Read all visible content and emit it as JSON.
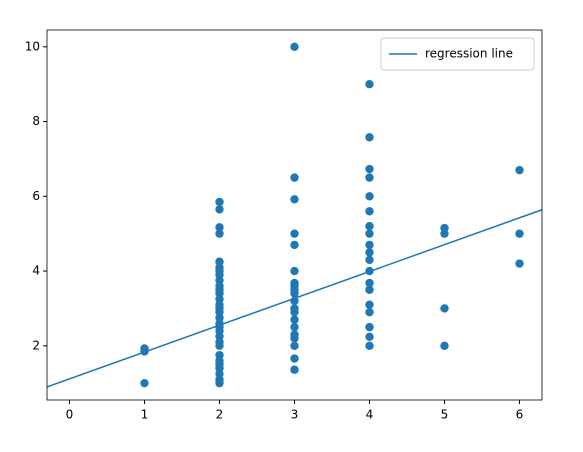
{
  "chart_data": {
    "type": "scatter",
    "series": [
      {
        "color": "#1f77b4",
        "x": [
          1,
          1,
          1,
          2,
          2,
          2,
          2,
          2,
          2,
          2,
          2,
          2,
          2,
          2,
          2,
          2,
          2,
          2,
          2,
          2,
          2,
          2,
          2,
          2,
          2,
          2,
          2,
          2,
          2,
          2,
          2,
          2,
          2,
          3,
          3,
          3,
          3,
          3,
          3,
          3,
          3,
          3,
          3,
          3,
          3,
          3,
          3,
          3,
          3,
          3,
          3,
          3,
          3,
          4,
          4,
          4,
          4,
          4,
          4,
          4,
          4,
          4,
          4,
          4,
          4,
          4,
          4,
          4,
          4,
          4,
          4,
          4,
          5,
          5,
          5,
          5,
          6,
          6,
          6
        ],
        "values": [
          1.0,
          1.85,
          1.93,
          1.0,
          1.1,
          1.25,
          1.4,
          1.5,
          1.6,
          1.75,
          2.0,
          2.1,
          2.25,
          2.4,
          2.5,
          2.6,
          2.75,
          2.9,
          3.0,
          3.1,
          3.25,
          3.4,
          3.5,
          3.6,
          3.75,
          3.9,
          4.0,
          4.1,
          4.25,
          5.0,
          5.17,
          5.65,
          5.85,
          1.36,
          1.66,
          2.0,
          2.2,
          2.3,
          2.5,
          2.7,
          2.9,
          3.0,
          3.2,
          3.4,
          3.5,
          3.6,
          3.68,
          4.0,
          4.7,
          5.0,
          5.92,
          6.5,
          10.0,
          2.0,
          2.24,
          2.5,
          2.9,
          3.1,
          3.5,
          3.68,
          4.0,
          4.3,
          4.5,
          4.7,
          5.0,
          5.2,
          5.6,
          6.0,
          6.5,
          6.73,
          7.58,
          9.0,
          2.0,
          3.0,
          5.0,
          5.15,
          4.2,
          5.0,
          6.7
        ]
      },
      {
        "type": "line",
        "name": "regression line",
        "color": "#1f77b4",
        "x": [
          -0.3,
          6.3
        ],
        "values": [
          0.9,
          5.64
        ]
      }
    ],
    "xlim": [
      -0.3,
      6.3
    ],
    "xticks": [
      0,
      1,
      2,
      3,
      4,
      5,
      6
    ],
    "ylim": [
      0.55,
      10.45
    ],
    "yticks": [
      2,
      4,
      6,
      8,
      10
    ],
    "legend": "upper right"
  }
}
